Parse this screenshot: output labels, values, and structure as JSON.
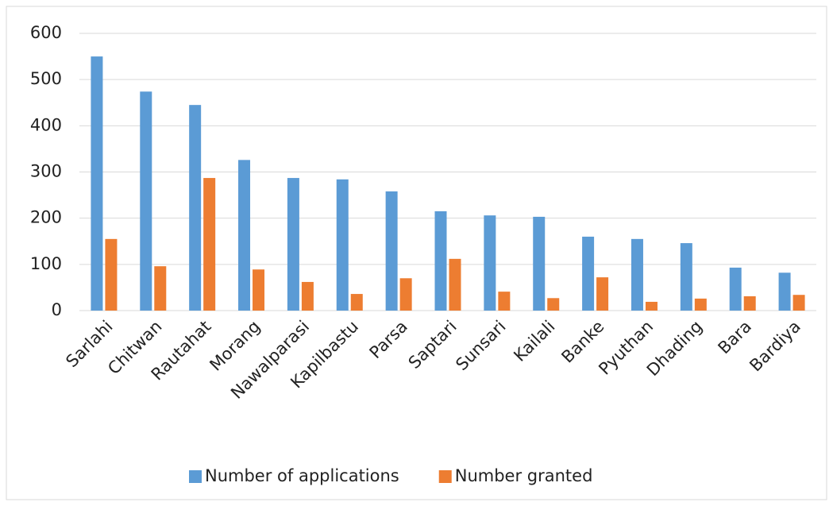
{
  "chart_data": {
    "type": "bar",
    "categories": [
      "Sarlahi",
      "Chitwan",
      "Rautahat",
      "Morang",
      "Nawalparasi",
      "Kapilbastu",
      "Parsa",
      "Saptari",
      "Sunsari",
      "Kailali",
      "Banke",
      "Pyuthan",
      "Dhading",
      "Bara",
      "Bardiya"
    ],
    "series": [
      {
        "name": "Number of applications",
        "color": "#5b9bd5",
        "values": [
          550,
          474,
          445,
          326,
          287,
          284,
          258,
          215,
          206,
          203,
          160,
          155,
          146,
          93,
          82
        ]
      },
      {
        "name": "Number granted",
        "color": "#ed7d31",
        "values": [
          155,
          96,
          287,
          89,
          62,
          36,
          70,
          112,
          41,
          27,
          72,
          19,
          26,
          31,
          34
        ]
      }
    ],
    "ylim": [
      0,
      600
    ],
    "yticks": [
      0,
      100,
      200,
      300,
      400,
      500,
      600
    ],
    "grid": true,
    "legend": "bottom"
  }
}
